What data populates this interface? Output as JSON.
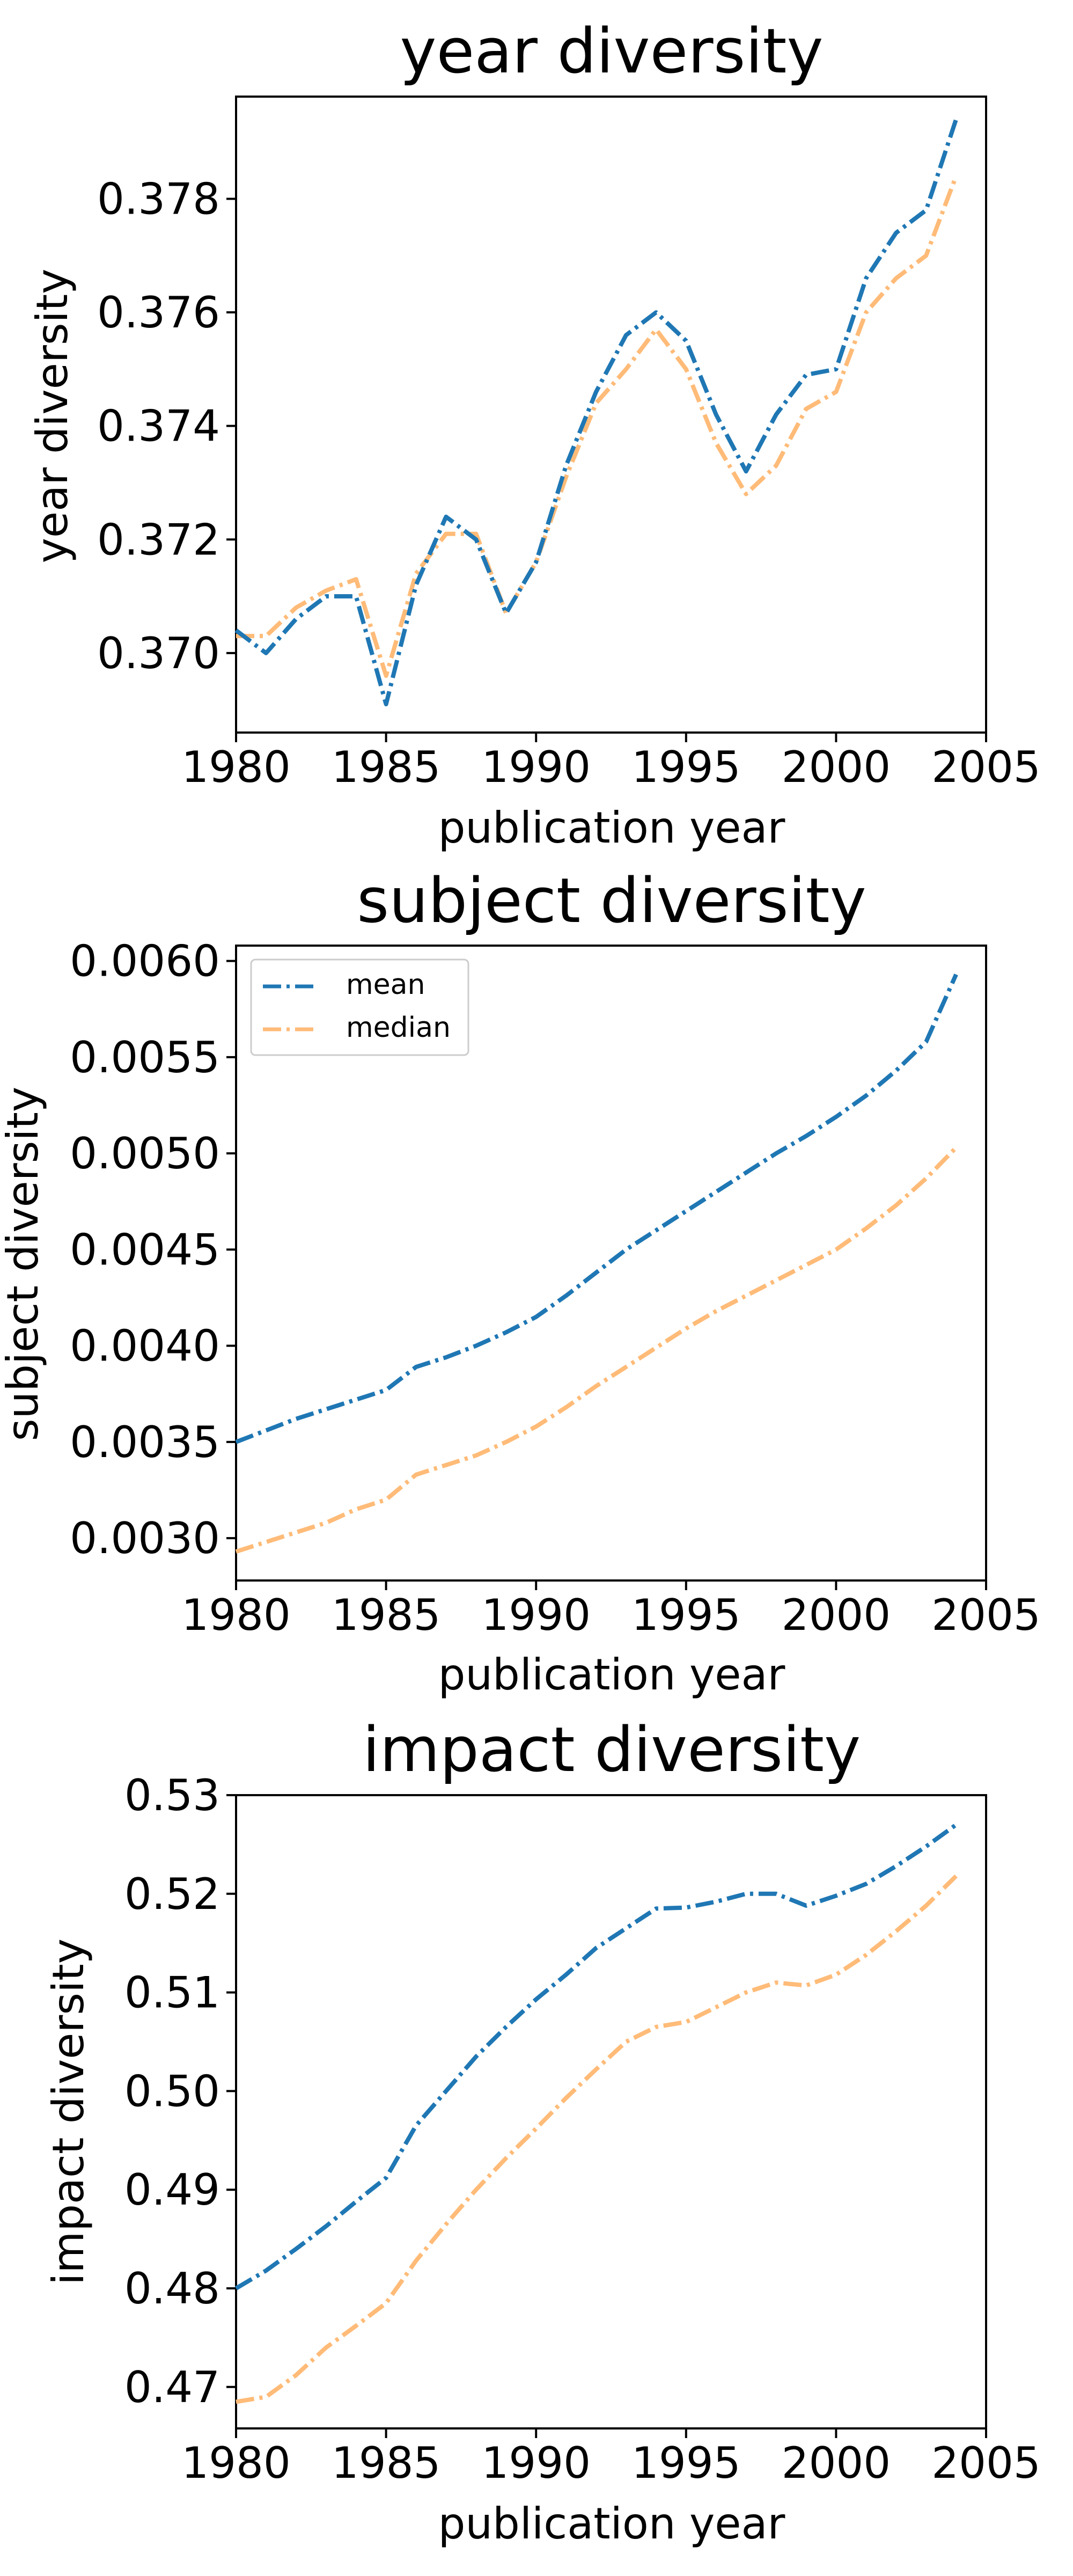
{
  "colors": {
    "mean": "#1f77b4",
    "median": "#ffbb78",
    "axis": "#000000",
    "background": "#ffffff"
  },
  "chart_data": [
    {
      "type": "line",
      "title": "year diversity",
      "xlabel": "publication year",
      "ylabel": "year diversity",
      "xlim": [
        1980,
        2005
      ],
      "ylim": [
        0.3686,
        0.3798
      ],
      "xticks": [
        "1980",
        "1985",
        "1990",
        "1995",
        "2000",
        "2005"
      ],
      "yticks": [
        "0.370",
        "0.372",
        "0.374",
        "0.376",
        "0.378"
      ],
      "grid": false,
      "legend": null,
      "x": [
        1980,
        1981,
        1982,
        1983,
        1984,
        1985,
        1986,
        1987,
        1988,
        1989,
        1990,
        1991,
        1992,
        1993,
        1994,
        1995,
        1996,
        1997,
        1998,
        1999,
        2000,
        2001,
        2002,
        2003,
        2004
      ],
      "series": [
        {
          "key": "mean",
          "values": [
            0.3704,
            0.37,
            0.3706,
            0.371,
            0.371,
            0.3691,
            0.3712,
            0.3724,
            0.372,
            0.3707,
            0.3716,
            0.3733,
            0.3746,
            0.3756,
            0.376,
            0.3755,
            0.3742,
            0.3732,
            0.3742,
            0.3749,
            0.375,
            0.3766,
            0.3774,
            0.3778,
            0.3794
          ]
        },
        {
          "key": "median",
          "values": [
            0.3703,
            0.3703,
            0.3708,
            0.3711,
            0.3713,
            0.3696,
            0.3714,
            0.3721,
            0.3721,
            0.3707,
            0.3716,
            0.3731,
            0.3744,
            0.375,
            0.3757,
            0.375,
            0.3737,
            0.3728,
            0.3733,
            0.3743,
            0.3746,
            0.376,
            0.3766,
            0.377,
            0.3784
          ]
        }
      ]
    },
    {
      "type": "line",
      "title": "subject diversity",
      "xlabel": "publication year",
      "ylabel": "subject diversity",
      "xlim": [
        1980,
        2005
      ],
      "ylim": [
        0.00278,
        0.00608
      ],
      "xticks": [
        "1980",
        "1985",
        "1990",
        "1995",
        "2000",
        "2005"
      ],
      "yticks": [
        "0.0030",
        "0.0035",
        "0.0040",
        "0.0045",
        "0.0050",
        "0.0055",
        "0.0060"
      ],
      "grid": false,
      "legend": {
        "placement": "upper-left",
        "entries": [
          "mean",
          "median"
        ]
      },
      "x": [
        1980,
        1981,
        1982,
        1983,
        1984,
        1985,
        1986,
        1987,
        1988,
        1989,
        1990,
        1991,
        1992,
        1993,
        1994,
        1995,
        1996,
        1997,
        1998,
        1999,
        2000,
        2001,
        2002,
        2003,
        2004
      ],
      "series": [
        {
          "key": "mean",
          "name": "mean",
          "values": [
            0.0035,
            0.00356,
            0.00362,
            0.00367,
            0.00372,
            0.00377,
            0.00389,
            0.00394,
            0.004,
            0.00407,
            0.00415,
            0.00426,
            0.00438,
            0.0045,
            0.0046,
            0.0047,
            0.0048,
            0.0049,
            0.005,
            0.00509,
            0.00519,
            0.0053,
            0.00543,
            0.00558,
            0.00593
          ]
        },
        {
          "key": "median",
          "name": "median",
          "values": [
            0.00293,
            0.00298,
            0.00303,
            0.00308,
            0.00315,
            0.0032,
            0.00333,
            0.00338,
            0.00343,
            0.0035,
            0.00358,
            0.00368,
            0.00379,
            0.00389,
            0.00399,
            0.00409,
            0.00418,
            0.00426,
            0.00434,
            0.00442,
            0.0045,
            0.00461,
            0.00473,
            0.00487,
            0.00503
          ]
        }
      ]
    },
    {
      "type": "line",
      "title": "impact diversity",
      "xlabel": "publication year",
      "ylabel": "impact diversity",
      "xlim": [
        1980,
        2005
      ],
      "ylim": [
        0.4658,
        0.53
      ],
      "xticks": [
        "1980",
        "1985",
        "1990",
        "1995",
        "2000",
        "2005"
      ],
      "yticks": [
        "0.47",
        "0.48",
        "0.49",
        "0.50",
        "0.51",
        "0.52",
        "0.53"
      ],
      "grid": false,
      "legend": null,
      "x": [
        1980,
        1981,
        1982,
        1983,
        1984,
        1985,
        1986,
        1987,
        1988,
        1989,
        1990,
        1991,
        1992,
        1993,
        1994,
        1995,
        1996,
        1997,
        1998,
        1999,
        2000,
        2001,
        2002,
        2003,
        2004
      ],
      "series": [
        {
          "key": "mean",
          "values": [
            0.48,
            0.4818,
            0.484,
            0.4863,
            0.4888,
            0.4912,
            0.4965,
            0.5,
            0.5035,
            0.5065,
            0.5093,
            0.5118,
            0.5145,
            0.5165,
            0.5185,
            0.5186,
            0.5192,
            0.52,
            0.52,
            0.5188,
            0.5198,
            0.521,
            0.5228,
            0.5248,
            0.527
          ]
        },
        {
          "key": "median",
          "values": [
            0.4685,
            0.469,
            0.4712,
            0.474,
            0.4762,
            0.4785,
            0.4828,
            0.4865,
            0.49,
            0.4932,
            0.4962,
            0.4993,
            0.5022,
            0.505,
            0.5065,
            0.507,
            0.5085,
            0.51,
            0.511,
            0.5107,
            0.5118,
            0.5138,
            0.5162,
            0.5188,
            0.5218
          ]
        }
      ]
    }
  ]
}
